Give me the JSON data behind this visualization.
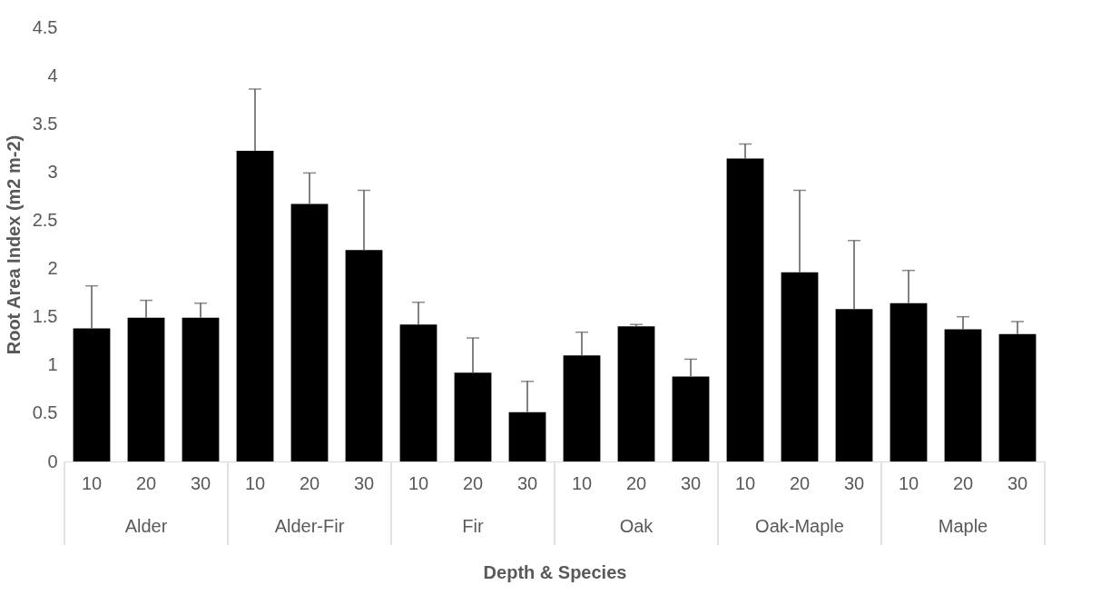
{
  "chart_data": {
    "type": "bar",
    "xlabel": "Depth  & Species",
    "ylabel": "Root Area Index (m2 m-2)",
    "categories": [
      "10",
      "20",
      "30",
      "10",
      "20",
      "30",
      "10",
      "20",
      "30",
      "10",
      "20",
      "30",
      "10",
      "20",
      "30",
      "10",
      "20",
      "30"
    ],
    "values": [
      1.38,
      1.49,
      1.49,
      3.22,
      2.67,
      2.19,
      1.42,
      0.92,
      0.51,
      1.1,
      1.4,
      0.88,
      3.14,
      1.96,
      1.58,
      1.64,
      1.37,
      1.32
    ],
    "errors": [
      [
        1.38,
        1.82
      ],
      [
        1.49,
        1.67
      ],
      [
        1.49,
        1.64
      ],
      [
        3.22,
        3.86
      ],
      [
        2.67,
        2.99
      ],
      [
        2.19,
        2.81
      ],
      [
        1.42,
        1.65
      ],
      [
        0.92,
        1.28
      ],
      [
        0.51,
        0.83
      ],
      [
        1.1,
        1.34
      ],
      [
        1.4,
        1.42
      ],
      [
        0.88,
        1.06
      ],
      [
        3.14,
        3.29
      ],
      [
        1.96,
        2.81
      ],
      [
        1.58,
        2.29
      ],
      [
        1.64,
        1.98
      ],
      [
        1.37,
        1.5
      ],
      [
        1.32,
        1.45
      ]
    ],
    "color": "#000000",
    "annotations": [
      "Alder",
      "Alder-Fir",
      "Fir",
      "Oak",
      "Oak-Maple",
      "Maple"
    ],
    "ylim": [
      0,
      4.5
    ],
    "yticks": [
      0,
      0.5,
      1,
      1.5,
      2,
      2.5,
      3,
      3.5,
      4,
      4.5
    ],
    "grid": false
  }
}
